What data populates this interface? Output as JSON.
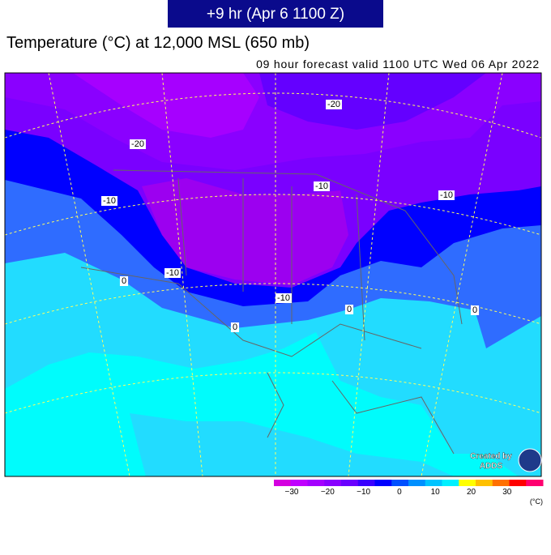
{
  "header": {
    "badge": "+9 hr (Apr 6 1100 Z)",
    "title": "Temperature (°C) at 12,000 MSL (650 mb)",
    "subtitle": "09 hour forecast valid 1100 UTC Wed 06 Apr 2022"
  },
  "map": {
    "contour_labels": [
      "-20",
      "-20",
      "-10",
      "-10",
      "-10",
      "-10",
      "-10",
      "0",
      "0",
      "0",
      "0"
    ],
    "logo": [
      "Created by",
      "ADDS"
    ]
  },
  "colorbar": {
    "colors": [
      "#d400e0",
      "#c000ff",
      "#a400ff",
      "#8800ff",
      "#6a00ff",
      "#3a00ff",
      "#0000ff",
      "#0050ff",
      "#0090ff",
      "#00c4ff",
      "#00f0ff",
      "#ffff00",
      "#ffc000",
      "#ff7000",
      "#ff0000",
      "#ff0070"
    ],
    "ticks": [
      "−30",
      "−20",
      "−10",
      "0",
      "10",
      "20",
      "30"
    ],
    "unit": "(°C)"
  }
}
